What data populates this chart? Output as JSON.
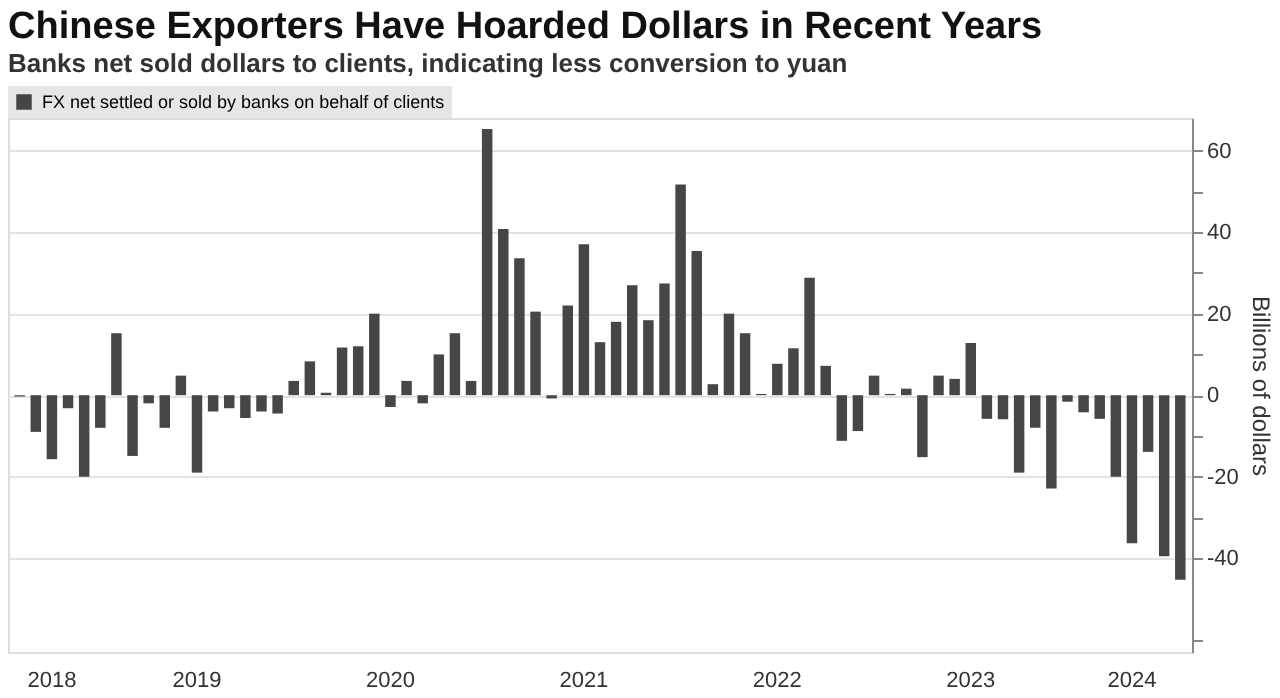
{
  "chart_data": {
    "type": "bar",
    "title": "Chinese Exporters Have Hoarded Dollars in Recent Years",
    "subtitle": "Banks net sold dollars to clients, indicating less conversion to yuan",
    "y2label": "Billions of dollars",
    "categories": [
      null,
      null,
      "2018",
      null,
      null,
      null,
      null,
      null,
      null,
      null,
      null,
      "2019",
      null,
      null,
      null,
      null,
      null,
      null,
      null,
      null,
      null,
      null,
      null,
      "2020",
      null,
      null,
      null,
      null,
      null,
      null,
      null,
      null,
      null,
      null,
      null,
      "2021",
      null,
      null,
      null,
      null,
      null,
      null,
      null,
      null,
      null,
      null,
      null,
      "2022",
      null,
      null,
      null,
      null,
      null,
      null,
      null,
      null,
      null,
      null,
      null,
      "2023",
      null,
      null,
      null,
      null,
      null,
      null,
      null,
      null,
      null,
      "2024",
      null,
      null,
      null
    ],
    "series": [
      {
        "name": "FX net settled or sold by banks on behalf of clients",
        "color": "#464646",
        "axis": "y2",
        "values": [
          -0.3,
          -9,
          -15.7,
          -3.2,
          -20,
          -8,
          15.2,
          -14.9,
          -2,
          -8,
          4.8,
          -19,
          -4,
          -3.2,
          -5.6,
          -4,
          -4.5,
          3.5,
          8.3,
          0.6,
          11.7,
          12,
          20,
          -2.9,
          3.5,
          -2,
          10,
          15.2,
          3.5,
          65.3,
          40.8,
          33.6,
          20.5,
          -0.8,
          22,
          37,
          13,
          18,
          27,
          18.4,
          27.4,
          51.7,
          35.4,
          2.7,
          20,
          15.2,
          0.3,
          7.7,
          11.5,
          28.8,
          7.2,
          -11.2,
          -8.8,
          4.8,
          0.3,
          1.6,
          -15.2,
          4.8,
          4,
          12.8,
          -5.8,
          -5.9,
          -19,
          -8,
          -22.9,
          -1.6,
          -4.2,
          -5.8,
          -20,
          -36.3,
          -13.9,
          -39.5,
          -45.3
        ]
      }
    ],
    "y2lim": [
      -63,
      68
    ],
    "y2ticks": [
      {
        "value": -60,
        "label": null
      },
      -40,
      {
        "value": -30,
        "label": null
      },
      -20,
      {
        "value": -10,
        "label": null
      },
      0,
      {
        "value": 10,
        "label": null
      },
      20,
      {
        "value": 30,
        "label": null
      },
      40,
      {
        "value": 50,
        "label": null
      },
      60
    ],
    "grid": "y",
    "legend": "top left"
  }
}
